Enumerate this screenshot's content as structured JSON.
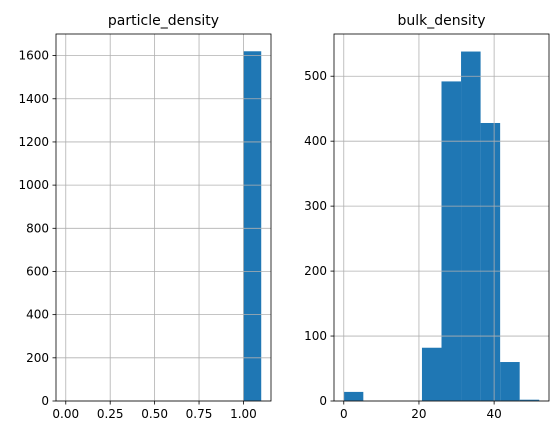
{
  "chart_data": [
    {
      "type": "bar",
      "subtype": "histogram",
      "title": "particle_density",
      "grid": true,
      "xlim": [
        -0.055,
        1.155
      ],
      "ylim": [
        0,
        1700
      ],
      "xticks": [
        0.0,
        0.25,
        0.5,
        0.75,
        1.0
      ],
      "xtick_labels": [
        "0.00",
        "0.25",
        "0.50",
        "0.75",
        "1.00"
      ],
      "yticks": [
        0,
        200,
        400,
        600,
        800,
        1000,
        1200,
        1400,
        1600
      ],
      "ytick_labels": [
        "0",
        "200",
        "400",
        "600",
        "800",
        "1000",
        "1200",
        "1400",
        "1600"
      ],
      "bins": [
        {
          "x0": 1.0,
          "x1": 1.1,
          "count": 1620
        }
      ],
      "color": "#1f77b4"
    },
    {
      "type": "bar",
      "subtype": "histogram",
      "title": "bulk_density",
      "grid": true,
      "xlim": [
        -2.6,
        54.6
      ],
      "ylim": [
        0,
        565
      ],
      "xticks": [
        0,
        20,
        40
      ],
      "xtick_labels": [
        "0",
        "20",
        "40"
      ],
      "yticks": [
        0,
        100,
        200,
        300,
        400,
        500
      ],
      "ytick_labels": [
        "0",
        "100",
        "200",
        "300",
        "400",
        "500"
      ],
      "bins": [
        {
          "x0": 0,
          "x1": 5.2,
          "count": 14
        },
        {
          "x0": 5.2,
          "x1": 10.4,
          "count": 0
        },
        {
          "x0": 10.4,
          "x1": 15.6,
          "count": 0
        },
        {
          "x0": 15.6,
          "x1": 20.8,
          "count": 0
        },
        {
          "x0": 20.8,
          "x1": 26.0,
          "count": 82
        },
        {
          "x0": 26.0,
          "x1": 31.2,
          "count": 492
        },
        {
          "x0": 31.2,
          "x1": 36.4,
          "count": 538
        },
        {
          "x0": 36.4,
          "x1": 41.6,
          "count": 428
        },
        {
          "x0": 41.6,
          "x1": 46.8,
          "count": 60
        },
        {
          "x0": 46.8,
          "x1": 52.0,
          "count": 2
        }
      ],
      "color": "#1f77b4"
    }
  ]
}
